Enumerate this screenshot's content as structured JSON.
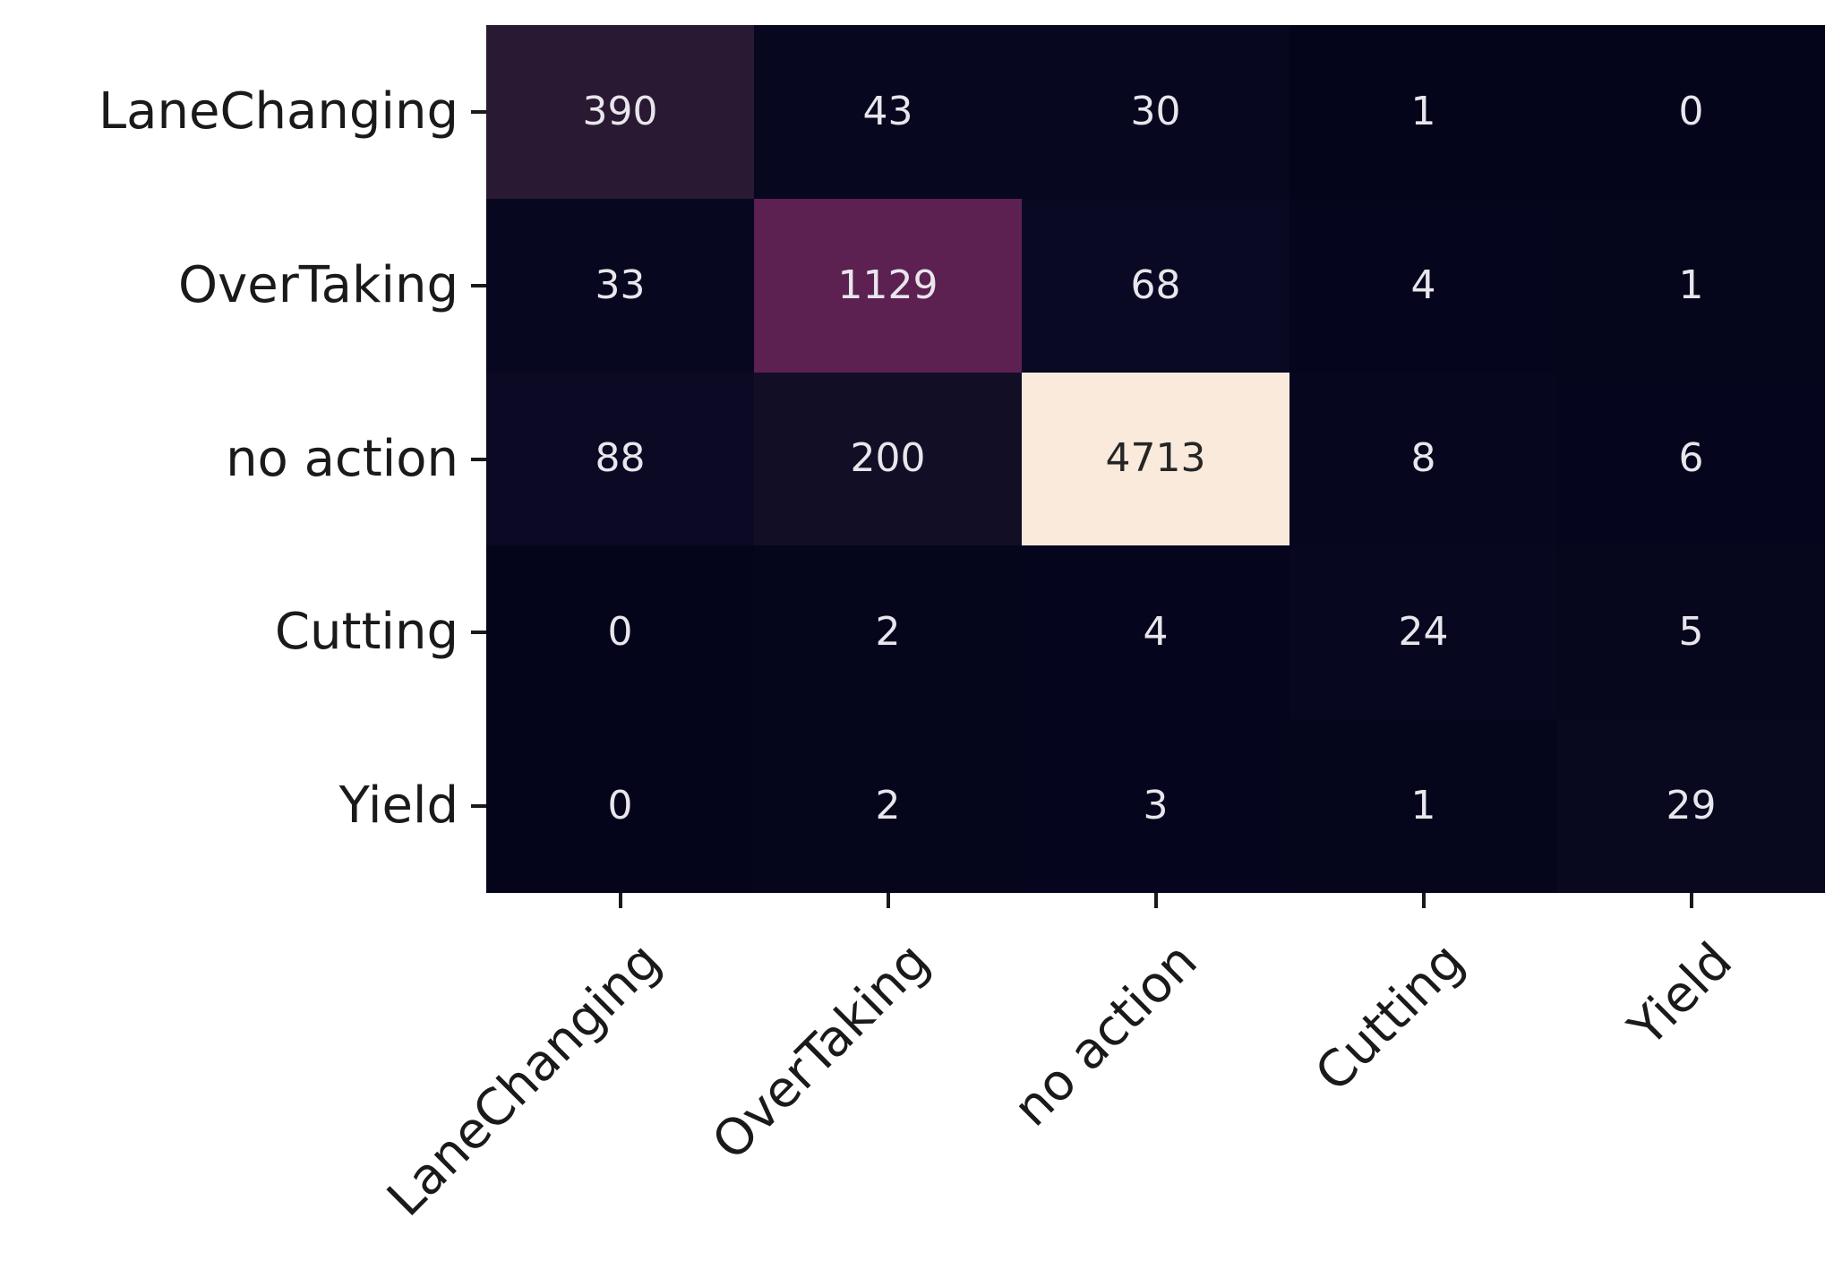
{
  "chart_data": {
    "type": "heatmap",
    "title": "",
    "xlabel": "",
    "ylabel": "",
    "x_categories": [
      "LaneChanging",
      "OverTaking",
      "no action",
      "Cutting",
      "Yield"
    ],
    "y_categories": [
      "LaneChanging",
      "OverTaking",
      "no action",
      "Cutting",
      "Yield"
    ],
    "matrix": [
      [
        390,
        43,
        30,
        1,
        0
      ],
      [
        33,
        1129,
        68,
        4,
        1
      ],
      [
        88,
        200,
        4713,
        8,
        6
      ],
      [
        0,
        2,
        4,
        24,
        5
      ],
      [
        0,
        2,
        3,
        1,
        29
      ]
    ],
    "vmin": 0,
    "vmax": 4713,
    "colormap": "rocket",
    "grid": false,
    "legend": "none",
    "cell_colors": [
      [
        "#291932",
        "#070720",
        "#07071F",
        "#04051B",
        "#04051B"
      ],
      [
        "#070720",
        "#5C2051",
        "#0A0923",
        "#05061D",
        "#05061C"
      ],
      [
        "#0B0923",
        "#120E26",
        "#FAEADC",
        "#06061E",
        "#05061D"
      ],
      [
        "#04051B",
        "#05061C",
        "#05061D",
        "#070720",
        "#06061D"
      ],
      [
        "#04051B",
        "#05061C",
        "#05061D",
        "#05061C",
        "#08081F"
      ]
    ]
  },
  "colors": {
    "background": "#ffffff",
    "annotation_light": "#E8E6EC",
    "annotation_dark": "#262626",
    "axis_label": "#1a1a1a",
    "tick": "#1a1a1a"
  }
}
